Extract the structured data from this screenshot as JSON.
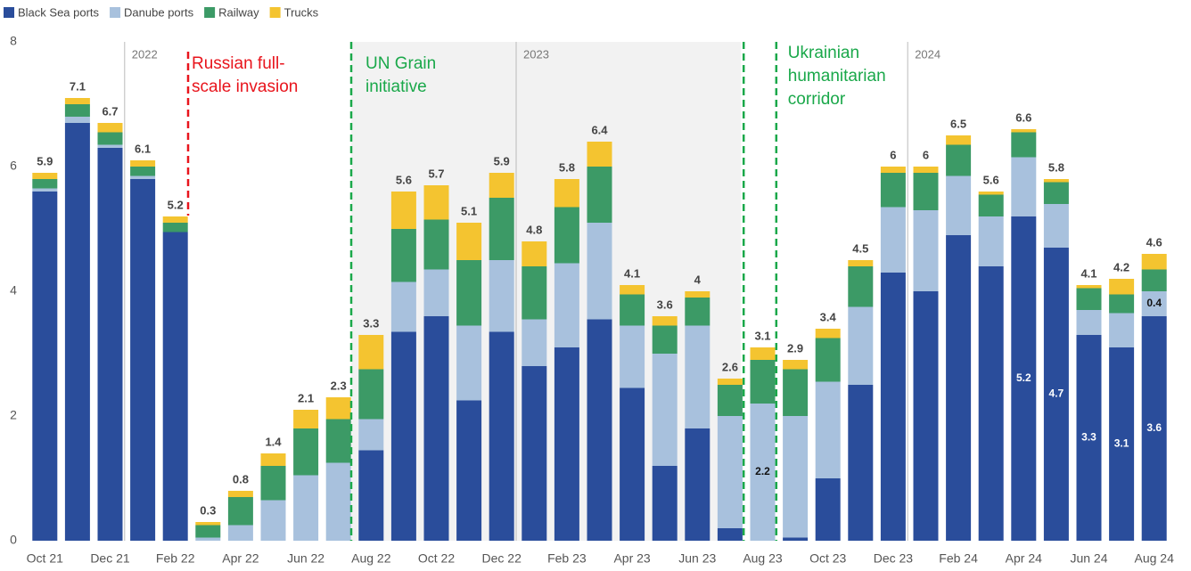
{
  "chart_data": {
    "type": "stacked-bar",
    "categories": [
      "Oct 21",
      null,
      "Dec 21",
      null,
      "Feb 22",
      null,
      "Apr 22",
      null,
      "Jun 22",
      null,
      "Aug 22",
      null,
      "Oct 22",
      null,
      "Dec 22",
      null,
      "Feb 23",
      null,
      "Apr 23",
      null,
      "Jun 23",
      null,
      "Aug 23",
      null,
      "Oct 23",
      null,
      "Dec 23",
      null,
      "Feb 24",
      null,
      "Apr 24",
      null,
      "Jun 24",
      null,
      "Aug 24"
    ],
    "series": [
      {
        "name": "Black Sea ports",
        "color": "#2a4d9b",
        "values": [
          5.6,
          6.7,
          6.3,
          5.8,
          4.95,
          0,
          0,
          0,
          0,
          0,
          1.45,
          3.35,
          3.6,
          2.25,
          3.35,
          2.8,
          3.1,
          3.55,
          2.45,
          1.2,
          1.8,
          0.2,
          0,
          0.05,
          1.0,
          2.5,
          4.3,
          4.0,
          4.9,
          4.4,
          5.2,
          4.7,
          3.3,
          3.1,
          3.6
        ],
        "value_labels": [
          null,
          null,
          null,
          null,
          null,
          null,
          null,
          null,
          null,
          null,
          null,
          null,
          null,
          null,
          null,
          null,
          null,
          null,
          null,
          null,
          null,
          null,
          null,
          null,
          null,
          null,
          null,
          null,
          null,
          null,
          "5.2",
          "4.7",
          "3.3",
          "3.1",
          "3.6"
        ]
      },
      {
        "name": "Danube ports",
        "color": "#a8c1dd",
        "values": [
          0.05,
          0.1,
          0.05,
          0.05,
          0,
          0.05,
          0.25,
          0.65,
          1.05,
          1.25,
          0.5,
          0.8,
          0.75,
          1.2,
          1.15,
          0.75,
          1.35,
          1.55,
          1.0,
          1.8,
          1.65,
          1.8,
          2.2,
          1.95,
          1.55,
          1.25,
          1.05,
          1.3,
          0.95,
          0.8,
          0.95,
          0.7,
          0.4,
          0.55,
          0.4
        ],
        "value_labels": [
          null,
          null,
          null,
          null,
          null,
          null,
          null,
          null,
          null,
          null,
          null,
          null,
          null,
          null,
          null,
          null,
          null,
          null,
          null,
          null,
          null,
          null,
          "2.2",
          null,
          null,
          null,
          null,
          null,
          null,
          null,
          null,
          null,
          null,
          null,
          "0.4"
        ]
      },
      {
        "name": "Railway",
        "color": "#3c9a66",
        "values": [
          0.15,
          0.2,
          0.2,
          0.15,
          0.15,
          0.2,
          0.45,
          0.55,
          0.75,
          0.7,
          0.8,
          0.85,
          0.8,
          1.05,
          1.0,
          0.85,
          0.9,
          0.9,
          0.5,
          0.45,
          0.45,
          0.5,
          0.7,
          0.75,
          0.7,
          0.65,
          0.55,
          0.6,
          0.5,
          0.35,
          0.4,
          0.35,
          0.35,
          0.3,
          0.35
        ]
      },
      {
        "name": "Trucks",
        "color": "#f4c430",
        "values": [
          0.1,
          0.1,
          0.15,
          0.1,
          0.1,
          0.05,
          0.1,
          0.2,
          0.3,
          0.35,
          0.55,
          0.6,
          0.55,
          0.6,
          0.4,
          0.4,
          0.45,
          0.4,
          0.15,
          0.15,
          0.1,
          0.1,
          0.2,
          0.15,
          0.15,
          0.1,
          0.1,
          0.1,
          0.15,
          0.05,
          0.05,
          0.05,
          0.05,
          0.25,
          0.25
        ]
      }
    ],
    "totals": [
      5.9,
      7.1,
      6.7,
      6.1,
      5.2,
      0.3,
      0.8,
      1.4,
      2.1,
      2.3,
      3.3,
      5.6,
      5.7,
      5.1,
      5.9,
      4.8,
      5.8,
      6.4,
      4.1,
      3.6,
      4,
      2.6,
      3.1,
      2.9,
      3.4,
      4.5,
      6,
      6,
      6.5,
      5.6,
      6.6,
      5.8,
      4.1,
      4.2,
      4.6
    ],
    "ylim": [
      0,
      8
    ],
    "yticks": [
      0,
      2,
      4,
      6,
      8
    ],
    "legend": "top-left",
    "years": [
      "2022",
      "2023",
      "2024"
    ],
    "annotations": [
      {
        "lines": [
          "Russian full-",
          "scale invasion"
        ],
        "color": "#e8141c"
      },
      {
        "lines": [
          "UN Grain",
          "initiative"
        ],
        "color": "#1aa84a"
      },
      {
        "lines": [
          "Ukrainian",
          "humanitarian",
          "corridor"
        ],
        "color": "#1aa84a"
      }
    ]
  }
}
